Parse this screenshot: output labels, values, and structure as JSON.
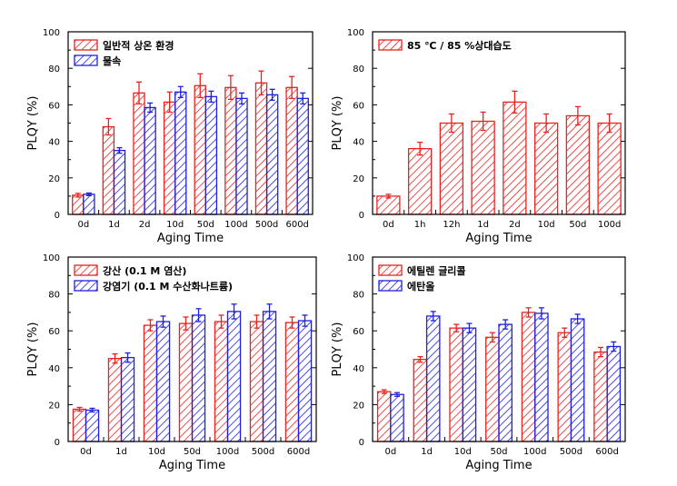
{
  "colors": {
    "red": "#e8231f",
    "blue": "#1f1fe0",
    "axis": "#000000"
  },
  "chart_data": [
    {
      "type": "bar",
      "xlabel": "Aging Time",
      "ylabel": "PLQY (%)",
      "ylim": [
        0,
        100
      ],
      "yticks": [
        0,
        20,
        40,
        60,
        80,
        100
      ],
      "legend_position": "top-left",
      "categories": [
        "0d",
        "1d",
        "2d",
        "10d",
        "50d",
        "100d",
        "500d",
        "600d"
      ],
      "series": [
        {
          "name": "일반적 상온 환경",
          "color": "red",
          "values": [
            10.5,
            48,
            66.5,
            61.5,
            70.5,
            69.5,
            72,
            69.5
          ],
          "errors": [
            1,
            4.5,
            6,
            5.5,
            6.5,
            6.5,
            6.5,
            6
          ]
        },
        {
          "name": "물속",
          "color": "blue",
          "values": [
            11,
            35,
            58.5,
            67,
            64.5,
            63.5,
            65.5,
            63.5
          ],
          "errors": [
            0.7,
            1.5,
            2.5,
            3,
            3,
            3,
            3,
            3
          ]
        }
      ]
    },
    {
      "type": "bar",
      "xlabel": "Aging Time",
      "ylabel": "PLQY (%)",
      "ylim": [
        0,
        100
      ],
      "yticks": [
        0,
        20,
        40,
        60,
        80,
        100
      ],
      "legend_position": "top-left",
      "categories": [
        "0d",
        "1h",
        "12h",
        "1d",
        "2d",
        "10d",
        "50d",
        "100d"
      ],
      "series": [
        {
          "name": "85 ℃ / 85 %상대습도",
          "color": "red",
          "values": [
            10,
            36,
            50,
            51,
            61.5,
            50,
            54,
            50
          ],
          "errors": [
            1,
            3.5,
            5,
            5,
            6,
            5,
            5,
            5
          ]
        }
      ]
    },
    {
      "type": "bar",
      "xlabel": "Aging Time",
      "ylabel": "PLQY (%)",
      "ylim": [
        0,
        100
      ],
      "yticks": [
        0,
        20,
        40,
        60,
        80,
        100
      ],
      "legend_position": "top-left",
      "categories": [
        "0d",
        "1d",
        "10d",
        "50d",
        "100d",
        "500d",
        "600d"
      ],
      "series": [
        {
          "name": "강산 (0.1 M 염산)",
          "color": "red",
          "values": [
            17.5,
            45,
            63,
            64,
            65,
            65,
            64.5
          ],
          "errors": [
            1,
            2.5,
            3,
            3.5,
            3.5,
            3.5,
            3
          ]
        },
        {
          "name": "강염기 (0.1 M 수산화나트륨)",
          "color": "blue",
          "values": [
            17,
            45.5,
            65,
            68.5,
            70.5,
            70.5,
            65.5
          ],
          "errors": [
            1,
            2.5,
            3,
            3.5,
            4,
            4,
            3
          ]
        }
      ]
    },
    {
      "type": "bar",
      "xlabel": "Aging Time",
      "ylabel": "PLQY (%)",
      "ylim": [
        0,
        100
      ],
      "yticks": [
        0,
        20,
        40,
        60,
        80,
        100
      ],
      "legend_position": "top-left",
      "categories": [
        "0d",
        "1d",
        "10d",
        "50d",
        "100d",
        "500d",
        "600d"
      ],
      "series": [
        {
          "name": "에틸렌 글리콜",
          "color": "red",
          "values": [
            27,
            44.5,
            61.5,
            56.5,
            70,
            59,
            48.5
          ],
          "errors": [
            1,
            1.5,
            2,
            2.5,
            2.5,
            2.5,
            2.5
          ]
        },
        {
          "name": "에탄올",
          "color": "blue",
          "values": [
            25.5,
            68,
            61.5,
            63.5,
            69.5,
            66.5,
            51.5
          ],
          "errors": [
            1,
            2.5,
            2.5,
            2.5,
            3,
            2.5,
            2.5
          ]
        }
      ]
    }
  ]
}
